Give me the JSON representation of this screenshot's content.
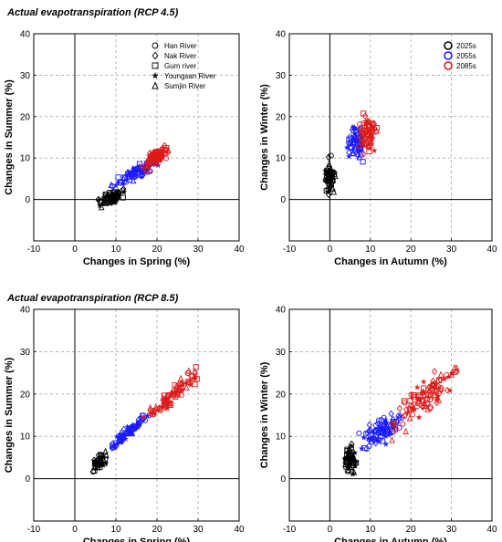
{
  "panels_text": {
    "top_title": "Actual evapotranspiration (RCP 4.5)",
    "bottom_title": "Actual evapotranspiration (RCP 8.5)"
  },
  "chart_data": [
    {
      "type": "scatter",
      "title": "Actual evapotranspiration (RCP 4.5)",
      "xlabel": "Changes in Spring (%)",
      "ylabel": "Changes in Summer (%)",
      "xlim": [
        -10,
        40
      ],
      "ylim": [
        -10,
        40
      ],
      "xticks": [
        "-10",
        "0",
        "10",
        "20",
        "30",
        "40"
      ],
      "yticks": [
        "0",
        "10",
        "20",
        "30",
        "40"
      ],
      "grid": true,
      "legend": {
        "position": "top-right",
        "kind": "markers",
        "entries": [
          {
            "label": "Han River",
            "marker": "circle"
          },
          {
            "label": "Nak River",
            "marker": "diamond"
          },
          {
            "label": "Gum river",
            "marker": "square"
          },
          {
            "label": "Youngsan River",
            "marker": "star"
          },
          {
            "label": "Sumjin River",
            "marker": "triangle"
          }
        ]
      },
      "series": [
        {
          "color": "#000000",
          "x_center": 9,
          "y_center": 0.5,
          "x_spread": 2.5,
          "y_spread": 1.2,
          "slope": 0.45,
          "n": 70
        },
        {
          "color": "#1a1aff",
          "x_center": 15,
          "y_center": 6.5,
          "x_spread": 4.0,
          "y_spread": 1.2,
          "slope": 0.55,
          "n": 80
        },
        {
          "color": "#dd1a1a",
          "x_center": 20,
          "y_center": 10.5,
          "x_spread": 2.5,
          "y_spread": 1.5,
          "slope": 0.6,
          "n": 80
        }
      ]
    },
    {
      "type": "scatter",
      "xlabel": "Changes in Autumn (%)",
      "ylabel": "Changes in Winter (%)",
      "xlim": [
        -10,
        40
      ],
      "ylim": [
        -10,
        40
      ],
      "xticks": [
        "-10",
        "0",
        "10",
        "20",
        "30",
        "40"
      ],
      "yticks": [
        "0",
        "10",
        "20",
        "30",
        "40"
      ],
      "grid": true,
      "legend": {
        "position": "top-right",
        "kind": "series",
        "entries": [
          "2025s",
          "2055s",
          "2085s"
        ]
      },
      "series": [
        {
          "name": "2025s",
          "color": "#000000",
          "x_center": 0,
          "y_center": 5.5,
          "x_spread": 1.0,
          "y_spread": 3.5,
          "slope": 0,
          "n": 60
        },
        {
          "name": "2055s",
          "color": "#1a1aff",
          "x_center": 6,
          "y_center": 14,
          "x_spread": 1.8,
          "y_spread": 3.5,
          "slope": 0,
          "n": 70
        },
        {
          "name": "2085s",
          "color": "#dd1a1a",
          "x_center": 9,
          "y_center": 15.5,
          "x_spread": 2.0,
          "y_spread": 4.0,
          "slope": 0,
          "n": 70
        }
      ]
    },
    {
      "type": "scatter",
      "title": "Actual evapotranspiration (RCP 8.5)",
      "xlabel": "Changes in Spring (%)",
      "ylabel": "Changes in Summer (%)",
      "xlim": [
        -10,
        40
      ],
      "ylim": [
        -10,
        40
      ],
      "xticks": [
        "-10",
        "0",
        "10",
        "20",
        "30",
        "40"
      ],
      "yticks": [
        "0",
        "10",
        "20",
        "30",
        "40"
      ],
      "grid": true,
      "series": [
        {
          "color": "#000000",
          "x_center": 6,
          "y_center": 4,
          "x_spread": 1.5,
          "y_spread": 1.5,
          "slope": 0.9,
          "n": 45
        },
        {
          "color": "#1a1aff",
          "x_center": 13,
          "y_center": 11,
          "x_spread": 4.0,
          "y_spread": 1.0,
          "slope": 0.8,
          "n": 80
        },
        {
          "color": "#dd1a1a",
          "x_center": 24,
          "y_center": 20,
          "x_spread": 5.0,
          "y_spread": 1.5,
          "slope": 0.85,
          "n": 90
        }
      ]
    },
    {
      "type": "scatter",
      "xlabel": "Changes in Autumn (%)",
      "ylabel": "Changes in Winter (%)",
      "xlim": [
        -10,
        40
      ],
      "ylim": [
        -10,
        40
      ],
      "xticks": [
        "-10",
        "0",
        "10",
        "20",
        "30",
        "40"
      ],
      "yticks": [
        "0",
        "10",
        "20",
        "30",
        "40"
      ],
      "grid": true,
      "series": [
        {
          "color": "#000000",
          "x_center": 5,
          "y_center": 4.5,
          "x_spread": 1.3,
          "y_spread": 2.5,
          "slope": 0.3,
          "n": 60
        },
        {
          "color": "#1a1aff",
          "x_center": 13,
          "y_center": 11.5,
          "x_spread": 4.0,
          "y_spread": 2.5,
          "slope": 0.6,
          "n": 90
        },
        {
          "color": "#dd1a1a",
          "x_center": 23,
          "y_center": 19,
          "x_spread": 6.0,
          "y_spread": 3.5,
          "slope": 0.8,
          "n": 100
        }
      ]
    }
  ]
}
